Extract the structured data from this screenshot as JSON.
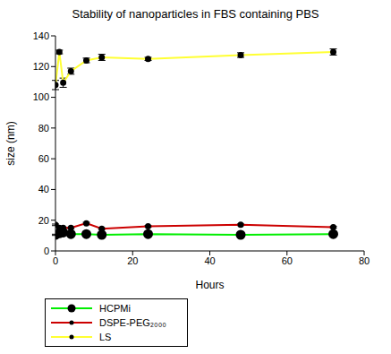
{
  "chart_data": {
    "type": "line",
    "title": "Stability of nanoparticles in FBS containing PBS",
    "x_label": "Hours",
    "y_label": "size (nm)",
    "x": [
      0,
      1,
      2,
      4,
      8,
      12,
      24,
      48,
      72
    ],
    "xlim": [
      0,
      80
    ],
    "xticks": [
      0,
      20,
      40,
      60,
      80
    ],
    "ylim": [
      0,
      140
    ],
    "yticks": [
      0,
      20,
      40,
      60,
      80,
      100,
      120,
      140
    ],
    "grid": false,
    "legend": "bottom left",
    "series": [
      {
        "name": "HCPMi",
        "color": "#00ee00",
        "marker": "circle",
        "values": [
          10.5,
          11.5,
          12,
          11,
          11,
          10.5,
          11,
          10.5,
          11
        ],
        "errors": [
          0.4,
          0.5,
          0.4,
          0.3,
          0.3,
          0.3,
          0.4,
          0.3,
          0.4
        ]
      },
      {
        "name": "DSPE-PEG₂₀₀₀",
        "color": "#cc0000",
        "marker": "circle",
        "values": [
          17,
          15,
          15,
          15,
          18,
          14.5,
          16,
          17,
          15.5
        ],
        "errors": [
          0.5,
          0.5,
          0.5,
          0.5,
          0.6,
          0.5,
          0.5,
          0.5,
          0.5
        ]
      },
      {
        "name": "LS",
        "color": "#ffff33",
        "marker": "circle",
        "values": [
          108,
          129.5,
          109.5,
          117,
          124,
          126,
          125,
          127.5,
          129.5
        ],
        "errors": [
          3,
          1.2,
          3,
          2,
          1.5,
          2,
          1,
          1.5,
          2
        ]
      }
    ]
  }
}
